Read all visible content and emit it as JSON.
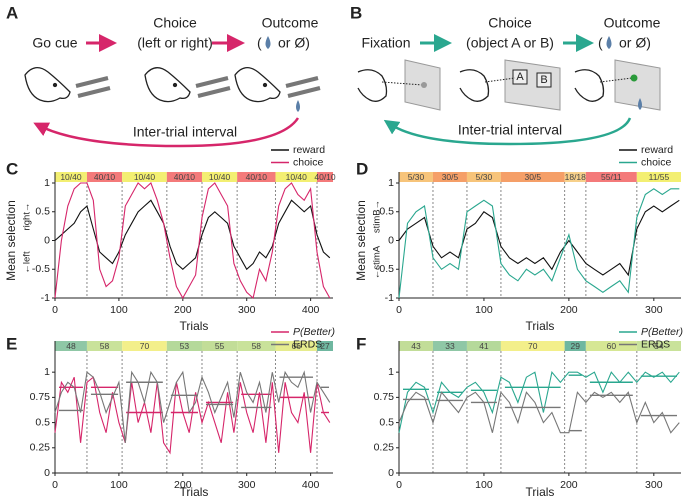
{
  "diagrams": [
    {
      "panel": "A",
      "steps": [
        "Go cue",
        "Choice",
        "Outcome"
      ],
      "choice_detail": "(left or right)",
      "outcome_open": "(",
      "outcome_close": "or Ø)",
      "loop": "Inter-trial interval"
    },
    {
      "panel": "B",
      "steps": [
        "Fixation",
        "Choice",
        "Outcome"
      ],
      "choice_detail": "(object A or B)",
      "outcome_open": "(",
      "outcome_close": "or Ø)",
      "loop": "Inter-trial interval",
      "objects": [
        "A",
        "B"
      ]
    }
  ],
  "chart_data": [
    {
      "panel": "C",
      "type": "line",
      "ylabel": "Mean selection",
      "ylabel_low": "←left",
      "ylabel_high": "right→",
      "xlabel": "Trials",
      "xlim": [
        0,
        435
      ],
      "ylim": [
        -1,
        1
      ],
      "xticks": [
        0,
        100,
        200,
        300,
        400
      ],
      "yticks": [
        -1,
        -0.5,
        0,
        0.5,
        1
      ],
      "legend": "upper right",
      "blocks": [
        {
          "start": 0,
          "end": 50,
          "label": "10/40",
          "color": "#f3ef72"
        },
        {
          "start": 50,
          "end": 105,
          "label": "40/10",
          "color": "#f47a7a"
        },
        {
          "start": 105,
          "end": 175,
          "label": "10/40",
          "color": "#f3ef72"
        },
        {
          "start": 175,
          "end": 230,
          "label": "40/10",
          "color": "#f47a7a"
        },
        {
          "start": 230,
          "end": 285,
          "label": "10/40",
          "color": "#f3ef72"
        },
        {
          "start": 285,
          "end": 345,
          "label": "40/10",
          "color": "#f47a7a"
        },
        {
          "start": 345,
          "end": 410,
          "label": "10/40",
          "color": "#f3ef72"
        },
        {
          "start": 410,
          "end": 435,
          "label": "40/10",
          "color": "#f47a7a"
        }
      ],
      "series": [
        {
          "name": "reward",
          "color": "#111111",
          "x": [
            0,
            10,
            20,
            30,
            40,
            50,
            60,
            70,
            80,
            90,
            100,
            110,
            120,
            130,
            140,
            150,
            160,
            170,
            180,
            190,
            200,
            210,
            220,
            230,
            240,
            250,
            260,
            270,
            280,
            290,
            300,
            310,
            320,
            330,
            340,
            350,
            360,
            370,
            380,
            390,
            400,
            410,
            420,
            430
          ],
          "values": [
            0,
            0.1,
            0.2,
            0.3,
            0.5,
            0.6,
            0.2,
            -0.2,
            -0.3,
            -0.4,
            -0.2,
            0.1,
            0.3,
            0.5,
            0.6,
            0.7,
            0.5,
            0.3,
            -0.1,
            -0.4,
            -0.5,
            -0.4,
            -0.3,
            0.1,
            0.4,
            0.5,
            0.4,
            0.3,
            -0.1,
            -0.3,
            -0.5,
            -0.4,
            -0.2,
            -0.3,
            -0.1,
            0.3,
            0.5,
            0.7,
            0.6,
            0.5,
            0.6,
            0.1,
            -0.2,
            -0.3
          ]
        },
        {
          "name": "choice",
          "color": "#d6266a",
          "x": [
            0,
            10,
            20,
            30,
            40,
            50,
            60,
            70,
            80,
            90,
            100,
            110,
            120,
            130,
            140,
            150,
            160,
            170,
            180,
            190,
            200,
            210,
            220,
            230,
            240,
            250,
            260,
            270,
            280,
            290,
            300,
            310,
            320,
            330,
            340,
            350,
            360,
            370,
            380,
            390,
            400,
            410,
            420,
            430
          ],
          "values": [
            -1,
            0,
            0.6,
            0.9,
            1,
            1,
            0.7,
            -0.5,
            -0.8,
            -0.7,
            -0.3,
            0.6,
            0.8,
            1,
            0.9,
            1,
            0.7,
            0.3,
            -0.3,
            -0.8,
            -1,
            -0.8,
            -0.6,
            0.4,
            0.9,
            1,
            0.8,
            0.6,
            -0.4,
            -0.7,
            -0.9,
            -1,
            -0.5,
            -0.7,
            -0.2,
            0.6,
            0.9,
            1,
            0.8,
            0.7,
            0.9,
            -0.2,
            -0.8,
            -1
          ]
        }
      ]
    },
    {
      "panel": "D",
      "type": "line",
      "ylabel": "Mean selection",
      "ylabel_low": "←stimA",
      "ylabel_high": "stimB→",
      "xlabel": "Trials",
      "xlim": [
        0,
        332
      ],
      "ylim": [
        -1,
        1
      ],
      "xticks": [
        0,
        100,
        200,
        300
      ],
      "yticks": [
        -1,
        -0.5,
        0,
        0.5,
        1
      ],
      "legend": "upper right",
      "blocks": [
        {
          "start": 0,
          "end": 40,
          "label": "5/30",
          "color": "#f7c47a"
        },
        {
          "start": 40,
          "end": 80,
          "label": "30/5",
          "color": "#f59f68"
        },
        {
          "start": 80,
          "end": 120,
          "label": "5/30",
          "color": "#f7c47a"
        },
        {
          "start": 120,
          "end": 195,
          "label": "30/5",
          "color": "#f59f68"
        },
        {
          "start": 195,
          "end": 220,
          "label": "18/18",
          "color": "#f7d08a"
        },
        {
          "start": 220,
          "end": 280,
          "label": "55/11",
          "color": "#f47a7a"
        },
        {
          "start": 280,
          "end": 332,
          "label": "11/55",
          "color": "#f3ef72"
        }
      ],
      "series": [
        {
          "name": "reward",
          "color": "#111111",
          "x": [
            0,
            10,
            20,
            30,
            40,
            50,
            60,
            70,
            80,
            90,
            100,
            110,
            120,
            130,
            140,
            150,
            160,
            170,
            180,
            190,
            200,
            210,
            220,
            230,
            240,
            250,
            260,
            270,
            280,
            290,
            300,
            310,
            320,
            330
          ],
          "values": [
            0,
            0.2,
            0.3,
            0.4,
            -0.1,
            -0.3,
            -0.2,
            -0.3,
            0.2,
            0.3,
            0.5,
            0.4,
            -0.1,
            -0.3,
            -0.4,
            -0.3,
            -0.4,
            -0.3,
            -0.5,
            -0.2,
            0,
            -0.2,
            -0.4,
            -0.5,
            -0.6,
            -0.5,
            -0.4,
            -0.6,
            0.2,
            0.5,
            0.6,
            0.5,
            0.6,
            0.7
          ]
        },
        {
          "name": "choice",
          "color": "#2aa78f",
          "x": [
            0,
            10,
            20,
            30,
            40,
            50,
            60,
            70,
            80,
            90,
            100,
            110,
            120,
            130,
            140,
            150,
            160,
            170,
            180,
            190,
            200,
            210,
            220,
            230,
            240,
            250,
            260,
            270,
            280,
            290,
            300,
            310,
            320,
            330
          ],
          "values": [
            -1,
            0.3,
            0.5,
            0.6,
            -0.3,
            -0.5,
            -0.4,
            -0.5,
            0.5,
            0.6,
            0.7,
            0.6,
            -0.4,
            -0.6,
            -0.7,
            -0.5,
            -0.6,
            -0.5,
            -0.7,
            -0.3,
            0.1,
            -0.5,
            -0.7,
            -0.8,
            -0.9,
            -0.8,
            -0.7,
            -0.9,
            0.4,
            0.8,
            0.9,
            0.8,
            0.9,
            0.9
          ]
        }
      ]
    },
    {
      "panel": "E",
      "type": "line",
      "xlabel": "Trials",
      "xlim": [
        0,
        435
      ],
      "ylim": [
        0,
        1.2
      ],
      "xticks": [
        0,
        100,
        200,
        300,
        400
      ],
      "yticks": [
        0,
        0.25,
        0.5,
        0.75,
        1
      ],
      "legend": "upper right",
      "blocks": [
        {
          "start": 0,
          "end": 50,
          "label": "48",
          "color": "#8fc7a6"
        },
        {
          "start": 50,
          "end": 105,
          "label": "58",
          "color": "#c9e29a"
        },
        {
          "start": 105,
          "end": 175,
          "label": "70",
          "color": "#f3ef8a"
        },
        {
          "start": 175,
          "end": 230,
          "label": "53",
          "color": "#b5d99a"
        },
        {
          "start": 230,
          "end": 285,
          "label": "55",
          "color": "#c2dd98"
        },
        {
          "start": 285,
          "end": 345,
          "label": "58",
          "color": "#c9e29a"
        },
        {
          "start": 345,
          "end": 410,
          "label": "66",
          "color": "#e6ec8e"
        },
        {
          "start": 410,
          "end": 435,
          "label": "27",
          "color": "#6fb7a0"
        }
      ],
      "series": [
        {
          "name": "P(Better)",
          "italic": true,
          "color": "#d6266a",
          "x": [
            0,
            10,
            20,
            30,
            40,
            50,
            60,
            70,
            80,
            90,
            100,
            110,
            120,
            130,
            140,
            150,
            160,
            170,
            180,
            190,
            200,
            210,
            220,
            230,
            240,
            250,
            260,
            270,
            280,
            290,
            300,
            310,
            320,
            330,
            340,
            350,
            360,
            370,
            380,
            390,
            400,
            410,
            420,
            430
          ],
          "values": [
            0.4,
            0.9,
            0.8,
            0.95,
            0.3,
            0.9,
            0.95,
            0.6,
            0.4,
            0.8,
            0.5,
            0.3,
            0.9,
            0.5,
            0.7,
            0.4,
            0.9,
            0.3,
            0.2,
            0.9,
            0.6,
            0.4,
            0.8,
            0.5,
            0.7,
            0.5,
            0.3,
            0.8,
            0.4,
            0.9,
            0.6,
            0.4,
            0.8,
            0.3,
            0.9,
            0.2,
            0.9,
            0.6,
            0.5,
            0.8,
            0.2,
            0.9,
            0.6,
            0.5
          ],
          "block_means": [
            0.85,
            0.85,
            0.6,
            0.6,
            0.7,
            0.78,
            0.75,
            0.6
          ]
        },
        {
          "name": "ERDS",
          "color": "#777777",
          "x": [
            0,
            10,
            20,
            30,
            40,
            50,
            60,
            70,
            80,
            90,
            100,
            110,
            120,
            130,
            140,
            150,
            160,
            170,
            180,
            190,
            200,
            210,
            220,
            230,
            240,
            250,
            260,
            270,
            280,
            290,
            300,
            310,
            320,
            330,
            340,
            350,
            360,
            370,
            380,
            390,
            400,
            410,
            420,
            430
          ],
          "values": [
            0.6,
            0.8,
            0.9,
            0.85,
            0.6,
            1,
            0.95,
            0.8,
            0.6,
            0.75,
            0.9,
            0.3,
            1,
            0.9,
            0.7,
            1,
            0.9,
            0.5,
            0.7,
            0.9,
            1,
            0.6,
            0.7,
            0.95,
            0.8,
            0.6,
            0.75,
            0.9,
            0.55,
            1,
            0.8,
            0.7,
            0.9,
            0.6,
            1,
            0.7,
            1,
            0.9,
            0.85,
            1,
            0.6,
            0.9,
            0.8,
            0.7
          ],
          "block_means": [
            0.62,
            0.78,
            0.9,
            0.77,
            0.68,
            0.65,
            0.95,
            0.85
          ]
        }
      ]
    },
    {
      "panel": "F",
      "type": "line",
      "xlabel": "Trials",
      "xlim": [
        0,
        332
      ],
      "ylim": [
        0,
        1.2
      ],
      "xticks": [
        0,
        100,
        200,
        300
      ],
      "yticks": [
        0,
        0.25,
        0.5,
        0.75,
        1
      ],
      "legend": "upper right",
      "blocks": [
        {
          "start": 0,
          "end": 40,
          "label": "43",
          "color": "#c2dd98"
        },
        {
          "start": 40,
          "end": 80,
          "label": "33",
          "color": "#8fc7a6"
        },
        {
          "start": 80,
          "end": 120,
          "label": "41",
          "color": "#b5d99a"
        },
        {
          "start": 120,
          "end": 195,
          "label": "70",
          "color": "#f3ef8a"
        },
        {
          "start": 195,
          "end": 220,
          "label": "29",
          "color": "#6fb7a0"
        },
        {
          "start": 220,
          "end": 280,
          "label": "60",
          "color": "#d6e794"
        },
        {
          "start": 280,
          "end": 332,
          "label": "54",
          "color": "#c9e29a"
        }
      ],
      "series": [
        {
          "name": "P(Better)",
          "italic": true,
          "color": "#2aa78f",
          "x": [
            0,
            10,
            20,
            30,
            40,
            50,
            60,
            70,
            80,
            90,
            100,
            110,
            120,
            130,
            140,
            150,
            160,
            170,
            180,
            190,
            200,
            210,
            220,
            230,
            240,
            250,
            260,
            270,
            280,
            290,
            300,
            310,
            320,
            330
          ],
          "values": [
            0.4,
            0.8,
            0.9,
            0.85,
            0.6,
            0.9,
            0.8,
            0.75,
            0.85,
            0.9,
            0.8,
            0.6,
            0.95,
            0.9,
            0.7,
            0.95,
            1,
            0.6,
            1,
            0.9,
            1,
            1,
            0.95,
            1,
            0.8,
            1,
            0.9,
            1,
            0.9,
            1,
            0.95,
            1,
            0.9,
            1
          ],
          "block_means": [
            0.83,
            0.8,
            0.82,
            0.85,
            0.97,
            0.9,
            0.96
          ]
        },
        {
          "name": "ERDS",
          "color": "#777777",
          "x": [
            0,
            10,
            20,
            30,
            40,
            50,
            60,
            70,
            80,
            90,
            100,
            110,
            120,
            130,
            140,
            150,
            160,
            170,
            180,
            190,
            200,
            210,
            220,
            230,
            240,
            250,
            260,
            270,
            280,
            290,
            300,
            310,
            320,
            330
          ],
          "values": [
            0.5,
            0.7,
            0.8,
            0.75,
            0.5,
            0.8,
            0.7,
            0.6,
            0.75,
            0.8,
            0.7,
            0.4,
            0.8,
            0.7,
            0.5,
            0.8,
            0.7,
            0.5,
            0.6,
            0.4,
            0.4,
            0.8,
            0.7,
            0.8,
            0.75,
            0.8,
            0.7,
            0.8,
            0.5,
            0.7,
            0.5,
            0.6,
            0.4,
            0.5
          ],
          "block_means": [
            0.73,
            0.72,
            0.7,
            0.65,
            0.42,
            0.77,
            0.57
          ]
        }
      ]
    }
  ]
}
